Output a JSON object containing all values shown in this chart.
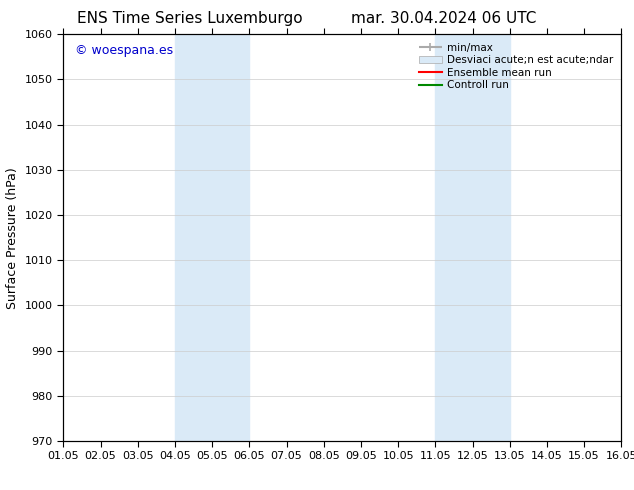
{
  "title_left": "ENS Time Series Luxemburgo",
  "title_right": "mar. 30.04.2024 06 UTC",
  "ylabel": "Surface Pressure (hPa)",
  "ylim": [
    970,
    1060
  ],
  "yticks": [
    970,
    980,
    990,
    1000,
    1010,
    1020,
    1030,
    1040,
    1050,
    1060
  ],
  "xlim_start": 0,
  "xlim_end": 15,
  "xtick_labels": [
    "01.05",
    "02.05",
    "03.05",
    "04.05",
    "05.05",
    "06.05",
    "07.05",
    "08.05",
    "09.05",
    "10.05",
    "11.05",
    "12.05",
    "13.05",
    "14.05",
    "15.05",
    "16.05"
  ],
  "shaded_regions": [
    {
      "xstart": 3,
      "xend": 5,
      "color": "#daeaf7"
    },
    {
      "xstart": 10,
      "xend": 12,
      "color": "#daeaf7"
    }
  ],
  "background_color": "#ffffff",
  "watermark_text": "© woespana.es",
  "watermark_color": "#0000cc",
  "legend_label_minmax": "min/max",
  "legend_label_desviac": "Desviaci acute;n est acute;ndar",
  "legend_label_ensemble": "Ensemble mean run",
  "legend_label_controll": "Controll run",
  "minmax_color": "#aaaaaa",
  "desviac_color": "#daeaf7",
  "ensemble_color": "#ff0000",
  "controll_color": "#008800",
  "grid_color": "#cccccc",
  "title_fontsize": 11,
  "tick_fontsize": 8,
  "ylabel_fontsize": 9,
  "legend_fontsize": 7.5
}
